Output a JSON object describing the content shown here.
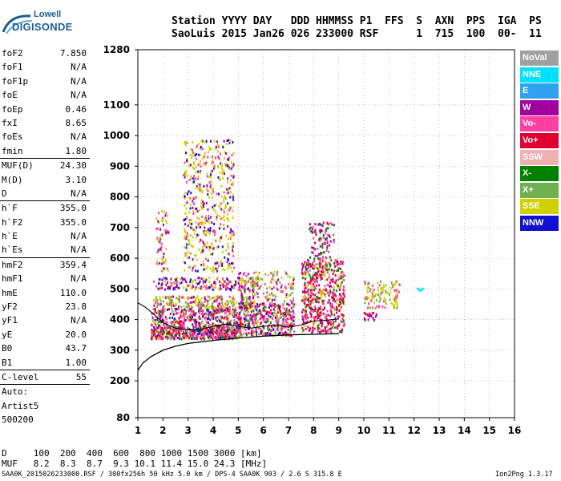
{
  "logo": {
    "brand_top": "Lowell",
    "brand_bottom": "DIGISONDE"
  },
  "header": {
    "line1": "Station YYYY DAY   DDD HHMMSS P1  FFS  S  AXN  PPS  IGA  PS",
    "line2": "SaoLuis 2015 Jan26 026 233000 RSF      1  715  100  00-  11"
  },
  "params": {
    "group1": [
      {
        "k": "foF2",
        "v": "7.850"
      },
      {
        "k": "foF1",
        "v": "N/A"
      },
      {
        "k": "foF1p",
        "v": "N/A"
      },
      {
        "k": "foE",
        "v": "N/A"
      },
      {
        "k": "foEp",
        "v": "0.46"
      },
      {
        "k": "fxI",
        "v": "8.65"
      },
      {
        "k": "foEs",
        "v": "N/A"
      },
      {
        "k": "fmin",
        "v": "1.80"
      }
    ],
    "group2": [
      {
        "k": "MUF(D)",
        "v": "24.30"
      },
      {
        "k": "M(D)",
        "v": "3.10"
      },
      {
        "k": "D",
        "v": "N/A"
      }
    ],
    "group3": [
      {
        "k": "h`F",
        "v": "355.0"
      },
      {
        "k": "h`F2",
        "v": "355.0"
      },
      {
        "k": "h`E",
        "v": "N/A"
      },
      {
        "k": "h`Es",
        "v": "N/A"
      }
    ],
    "group4": [
      {
        "k": "hmF2",
        "v": "359.4"
      },
      {
        "k": "hmF1",
        "v": "N/A"
      },
      {
        "k": "hmE",
        "v": "110.0"
      },
      {
        "k": "yF2",
        "v": "23.8"
      },
      {
        "k": "yF1",
        "v": "N/A"
      },
      {
        "k": "yE",
        "v": "20.0"
      },
      {
        "k": "B0",
        "v": "43.7"
      },
      {
        "k": "B1",
        "v": "1.00"
      }
    ],
    "clevel": {
      "k": "C-level",
      "v": "55"
    },
    "auto": [
      "Auto:",
      "Artist5",
      "500200"
    ]
  },
  "legend": [
    {
      "label": "NoVal",
      "color": "#a0a0a0"
    },
    {
      "label": "NNE",
      "color": "#00e0ff"
    },
    {
      "label": "E",
      "color": "#30a0f0"
    },
    {
      "label": "W",
      "color": "#a000a0"
    },
    {
      "label": "Vo-",
      "color": "#ff40a0"
    },
    {
      "label": "Vo+",
      "color": "#e00030"
    },
    {
      "label": "SSW",
      "color": "#f0b0b0"
    },
    {
      "label": "X-",
      "color": "#008000"
    },
    {
      "label": "X+",
      "color": "#70b050"
    },
    {
      "label": "SSE",
      "color": "#d0d000"
    },
    {
      "label": "NNW",
      "color": "#1010d0"
    }
  ],
  "footer": {
    "d_row": "D     100  200  400  600  800 1000 1500 3000 [km]",
    "muf_row": "MUF   8.2  8.3  8.7  9.3 10.1 11.4 15.0 24.3 [MHz]",
    "info": "SAA0K_2015026233000.RSF / 300fx256h 50 kHz 5.0 km / DPS-4 SAA0K 903 / 2.6 S 315.8 E",
    "version": "Ion2Png 1.3.17"
  },
  "chart_data": {
    "type": "scatter",
    "xlim": [
      1,
      16
    ],
    "ylim": [
      80,
      1280
    ],
    "x_ticks": [
      1,
      2,
      3,
      4,
      5,
      6,
      7,
      8,
      9,
      10,
      11,
      12,
      13,
      14,
      15,
      16
    ],
    "y_ticks": [
      80,
      200,
      300,
      400,
      500,
      600,
      700,
      800,
      900,
      1000,
      1100,
      1280
    ],
    "grid": true,
    "profile_curve": {
      "x": [
        1.0,
        1.2,
        1.5,
        2.0,
        2.5,
        3.0,
        4.0,
        5.0,
        6.0,
        7.0,
        8.0,
        9.0
      ],
      "y": [
        235,
        258,
        278,
        300,
        313,
        322,
        332,
        340,
        346,
        350,
        352,
        354
      ]
    },
    "trace_curve": {
      "x": [
        1.0,
        1.3,
        1.6,
        2.0,
        2.5,
        3.0,
        3.5,
        4.0,
        4.5,
        5.0,
        5.5,
        6.0,
        6.5,
        7.0,
        7.5,
        8.0,
        8.5,
        9.0
      ],
      "y": [
        455,
        440,
        420,
        390,
        372,
        366,
        368,
        378,
        385,
        378,
        372,
        378,
        382,
        375,
        382,
        395,
        398,
        402
      ]
    }
  }
}
